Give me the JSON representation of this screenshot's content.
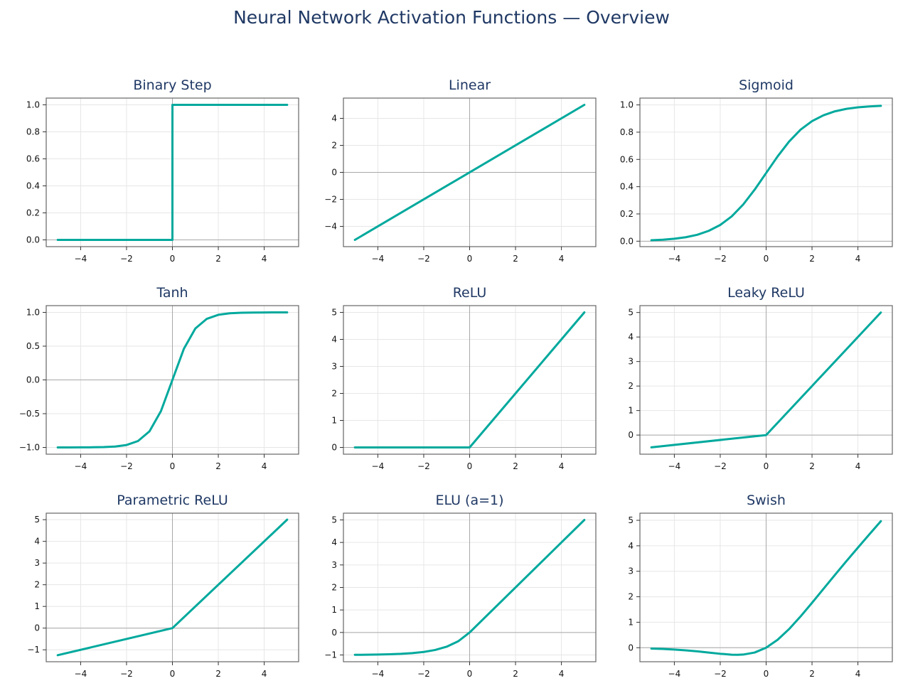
{
  "title": "Neural Network Activation Functions — Overview",
  "colors": {
    "curve": "#00a99d",
    "title": "#1f3864",
    "grid": "#e6e6e6",
    "zero_axis": "#a8a8a8",
    "frame": "#666666"
  },
  "chart_data": [
    {
      "type": "line",
      "title": "Binary Step",
      "xlabel": "",
      "ylabel": "",
      "xlim": [
        -5.5,
        5.5
      ],
      "ylim": [
        -0.05,
        1.05
      ],
      "grid": true,
      "xticks": [
        -4,
        -2,
        0,
        2,
        4
      ],
      "xtick_labels": [
        "−4",
        "−2",
        "0",
        "2",
        "4"
      ],
      "yticks": [
        0,
        0.2,
        0.4,
        0.6,
        0.8,
        1.0
      ],
      "ytick_labels": [
        "0.0",
        "0.2",
        "0.4",
        "0.6",
        "0.8",
        "1.0"
      ],
      "series": [
        {
          "x": [
            -5,
            0,
            0.001,
            5
          ],
          "y": [
            0,
            0,
            1,
            1
          ]
        }
      ]
    },
    {
      "type": "line",
      "title": "Linear",
      "xlabel": "",
      "ylabel": "",
      "xlim": [
        -5.5,
        5.5
      ],
      "ylim": [
        -5.5,
        5.5
      ],
      "grid": true,
      "xticks": [
        -4,
        -2,
        0,
        2,
        4
      ],
      "xtick_labels": [
        "−4",
        "−2",
        "0",
        "2",
        "4"
      ],
      "yticks": [
        -4,
        -2,
        0,
        2,
        4
      ],
      "ytick_labels": [
        "−4",
        "−2",
        "0",
        "2",
        "4"
      ],
      "series": [
        {
          "x": [
            -5,
            5
          ],
          "y": [
            -5,
            5
          ]
        }
      ]
    },
    {
      "type": "line",
      "title": "Sigmoid",
      "xlabel": "",
      "ylabel": "",
      "xlim": [
        -5.5,
        5.5
      ],
      "ylim": [
        -0.04,
        1.05
      ],
      "grid": true,
      "xticks": [
        -4,
        -2,
        0,
        2,
        4
      ],
      "xtick_labels": [
        "−4",
        "−2",
        "0",
        "2",
        "4"
      ],
      "yticks": [
        0,
        0.2,
        0.4,
        0.6,
        0.8,
        1.0
      ],
      "ytick_labels": [
        "0.0",
        "0.2",
        "0.4",
        "0.6",
        "0.8",
        "1.0"
      ],
      "series": [
        {
          "x": [
            -5,
            -4.5,
            -4,
            -3.5,
            -3,
            -2.5,
            -2,
            -1.5,
            -1,
            -0.5,
            0,
            0.5,
            1,
            1.5,
            2,
            2.5,
            3,
            3.5,
            4,
            4.5,
            5
          ],
          "y": [
            0.007,
            0.011,
            0.018,
            0.029,
            0.047,
            0.076,
            0.119,
            0.182,
            0.269,
            0.378,
            0.5,
            0.622,
            0.731,
            0.818,
            0.881,
            0.924,
            0.953,
            0.971,
            0.982,
            0.989,
            0.993
          ]
        }
      ]
    },
    {
      "type": "line",
      "title": "Tanh",
      "xlabel": "",
      "ylabel": "",
      "xlim": [
        -5.5,
        5.5
      ],
      "ylim": [
        -1.1,
        1.1
      ],
      "grid": true,
      "xticks": [
        -4,
        -2,
        0,
        2,
        4
      ],
      "xtick_labels": [
        "−4",
        "−2",
        "0",
        "2",
        "4"
      ],
      "yticks": [
        -1.0,
        -0.5,
        0,
        0.5,
        1.0
      ],
      "ytick_labels": [
        "−1.0",
        "−0.5",
        "0.0",
        "0.5",
        "1.0"
      ],
      "series": [
        {
          "x": [
            -5,
            -4.5,
            -4,
            -3.5,
            -3,
            -2.5,
            -2,
            -1.5,
            -1,
            -0.5,
            0,
            0.5,
            1,
            1.5,
            2,
            2.5,
            3,
            3.5,
            4,
            4.5,
            5
          ],
          "y": [
            -1.0,
            -1.0,
            -0.999,
            -0.998,
            -0.995,
            -0.987,
            -0.964,
            -0.905,
            -0.762,
            -0.462,
            0,
            0.462,
            0.762,
            0.905,
            0.964,
            0.987,
            0.995,
            0.998,
            0.999,
            1.0,
            1.0
          ]
        }
      ]
    },
    {
      "type": "line",
      "title": "ReLU",
      "xlabel": "",
      "ylabel": "",
      "xlim": [
        -5.5,
        5.5
      ],
      "ylim": [
        -0.25,
        5.25
      ],
      "grid": true,
      "xticks": [
        -4,
        -2,
        0,
        2,
        4
      ],
      "xtick_labels": [
        "−4",
        "−2",
        "0",
        "2",
        "4"
      ],
      "yticks": [
        0,
        1,
        2,
        3,
        4,
        5
      ],
      "ytick_labels": [
        "0",
        "1",
        "2",
        "3",
        "4",
        "5"
      ],
      "series": [
        {
          "x": [
            -5,
            0,
            5
          ],
          "y": [
            0,
            0,
            5
          ]
        }
      ]
    },
    {
      "type": "line",
      "title": "Leaky ReLU",
      "xlabel": "",
      "ylabel": "",
      "xlim": [
        -5.5,
        5.5
      ],
      "ylim": [
        -0.78,
        5.28
      ],
      "grid": true,
      "xticks": [
        -4,
        -2,
        0,
        2,
        4
      ],
      "xtick_labels": [
        "−4",
        "−2",
        "0",
        "2",
        "4"
      ],
      "yticks": [
        0,
        1,
        2,
        3,
        4,
        5
      ],
      "ytick_labels": [
        "0",
        "1",
        "2",
        "3",
        "4",
        "5"
      ],
      "series": [
        {
          "x": [
            -5,
            0,
            5
          ],
          "y": [
            -0.5,
            0,
            5
          ]
        }
      ]
    },
    {
      "type": "line",
      "title": "Parametric ReLU",
      "xlabel": "",
      "ylabel": "",
      "xlim": [
        -5.5,
        5.5
      ],
      "ylim": [
        -1.55,
        5.3
      ],
      "grid": true,
      "xticks": [
        -4,
        -2,
        0,
        2,
        4
      ],
      "xtick_labels": [
        "−4",
        "−2",
        "0",
        "2",
        "4"
      ],
      "yticks": [
        -1,
        0,
        1,
        2,
        3,
        4,
        5
      ],
      "ytick_labels": [
        "−1",
        "0",
        "1",
        "2",
        "3",
        "4",
        "5"
      ],
      "series": [
        {
          "x": [
            -5,
            0,
            5
          ],
          "y": [
            -1.25,
            0,
            5
          ]
        }
      ]
    },
    {
      "type": "line",
      "title": "ELU (a=1)",
      "xlabel": "",
      "ylabel": "",
      "xlim": [
        -5.5,
        5.5
      ],
      "ylim": [
        -1.3,
        5.3
      ],
      "grid": true,
      "xticks": [
        -4,
        -2,
        0,
        2,
        4
      ],
      "xtick_labels": [
        "−4",
        "−2",
        "0",
        "2",
        "4"
      ],
      "yticks": [
        -1,
        0,
        1,
        2,
        3,
        4,
        5
      ],
      "ytick_labels": [
        "−1",
        "0",
        "1",
        "2",
        "3",
        "4",
        "5"
      ],
      "series": [
        {
          "x": [
            -5,
            -4.5,
            -4,
            -3.5,
            -3,
            -2.5,
            -2,
            -1.5,
            -1,
            -0.5,
            0,
            5
          ],
          "y": [
            -0.993,
            -0.989,
            -0.982,
            -0.97,
            -0.95,
            -0.918,
            -0.865,
            -0.777,
            -0.632,
            -0.393,
            0,
            5
          ]
        }
      ]
    },
    {
      "type": "line",
      "title": "Swish",
      "xlabel": "",
      "ylabel": "",
      "xlim": [
        -5.5,
        5.5
      ],
      "ylim": [
        -0.55,
        5.28
      ],
      "grid": true,
      "xticks": [
        -4,
        -2,
        0,
        2,
        4
      ],
      "xtick_labels": [
        "−4",
        "−2",
        "0",
        "2",
        "4"
      ],
      "yticks": [
        0,
        1,
        2,
        3,
        4,
        5
      ],
      "ytick_labels": [
        "0",
        "1",
        "2",
        "3",
        "4",
        "5"
      ],
      "series": [
        {
          "x": [
            -5,
            -4.5,
            -4,
            -3.5,
            -3,
            -2.5,
            -2,
            -1.5,
            -1.25,
            -1,
            -0.5,
            0,
            0.5,
            1,
            1.5,
            2,
            2.5,
            3,
            3.5,
            4,
            4.5,
            5
          ],
          "y": [
            -0.033,
            -0.049,
            -0.072,
            -0.103,
            -0.142,
            -0.19,
            -0.238,
            -0.273,
            -0.278,
            -0.269,
            -0.189,
            0,
            0.311,
            0.731,
            1.227,
            1.762,
            2.311,
            2.858,
            3.398,
            3.928,
            4.45,
            4.966
          ]
        }
      ]
    }
  ]
}
